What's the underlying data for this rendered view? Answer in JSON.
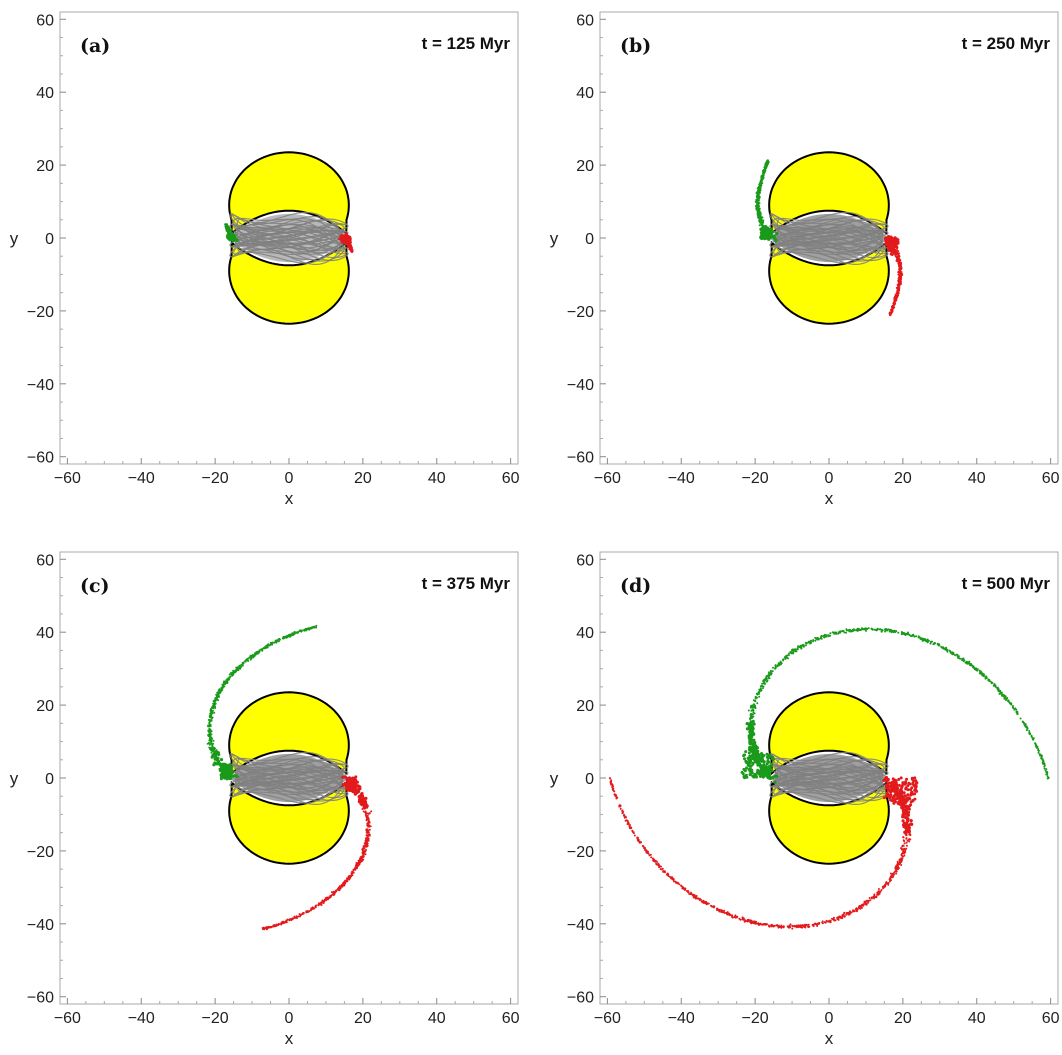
{
  "colors": {
    "bar": "#ffff00",
    "bar_outline": "#000000",
    "core": "#808080",
    "left_arm": "#1a9a1a",
    "right_arm": "#e31a1c",
    "frame": "#aaaaaa"
  },
  "chart_data": [
    {
      "type": "scatter",
      "panel": "(a)",
      "time_label": "t = 125 Myr",
      "xlabel": "x",
      "ylabel": "y",
      "xlim": [
        -62,
        62
      ],
      "ylim": [
        -62,
        62
      ],
      "xticks": [
        "−60",
        "−40",
        "−20",
        "0",
        "20",
        "40",
        "60"
      ],
      "yticks": [
        "60",
        "40",
        "20",
        "0",
        "−20",
        "−40",
        "−60"
      ],
      "grid": false,
      "arm_outer_radius": 17.5,
      "arm_sweep_deg": 12,
      "arm_front_start": 14,
      "arm_front_end": 16
    },
    {
      "type": "scatter",
      "panel": "(b)",
      "time_label": "t = 250 Myr",
      "xlabel": "x",
      "ylabel": "y",
      "xlim": [
        -62,
        62
      ],
      "ylim": [
        -62,
        62
      ],
      "xticks": [
        "−60",
        "−40",
        "−20",
        "0",
        "20",
        "40",
        "60"
      ],
      "yticks": [
        "60",
        "40",
        "20",
        "0",
        "−20",
        "−40",
        "−60"
      ],
      "grid": false,
      "arm_outer_radius": 27,
      "arm_sweep_deg": 52,
      "arm_front_start": 15,
      "arm_front_end": 21.5
    },
    {
      "type": "scatter",
      "panel": "(c)",
      "time_label": "t = 375 Myr",
      "xlabel": "x",
      "ylabel": "y",
      "xlim": [
        -62,
        62
      ],
      "ylim": [
        -62,
        62
      ],
      "xticks": [
        "−60",
        "−40",
        "−20",
        "0",
        "20",
        "40",
        "60"
      ],
      "yticks": [
        "60",
        "40",
        "20",
        "0",
        "−20",
        "−40",
        "−60"
      ],
      "grid": false,
      "arm_outer_radius": 42.5,
      "arm_sweep_deg": 100,
      "arm_front_start": 15,
      "arm_front_end": 21
    },
    {
      "type": "scatter",
      "panel": "(d)",
      "time_label": "t = 500 Myr",
      "xlabel": "x",
      "ylabel": "y",
      "xlim": [
        -62,
        62
      ],
      "ylim": [
        -62,
        62
      ],
      "xticks": [
        "−60",
        "−40",
        "−20",
        "0",
        "20",
        "40",
        "60"
      ],
      "yticks": [
        "60",
        "40",
        "20",
        "0",
        "−20",
        "−40",
        "−60"
      ],
      "grid": false,
      "arm_outer_radius": 60,
      "arm_sweep_deg": 180,
      "arm_front_start": 15,
      "arm_front_end": 35
    }
  ]
}
